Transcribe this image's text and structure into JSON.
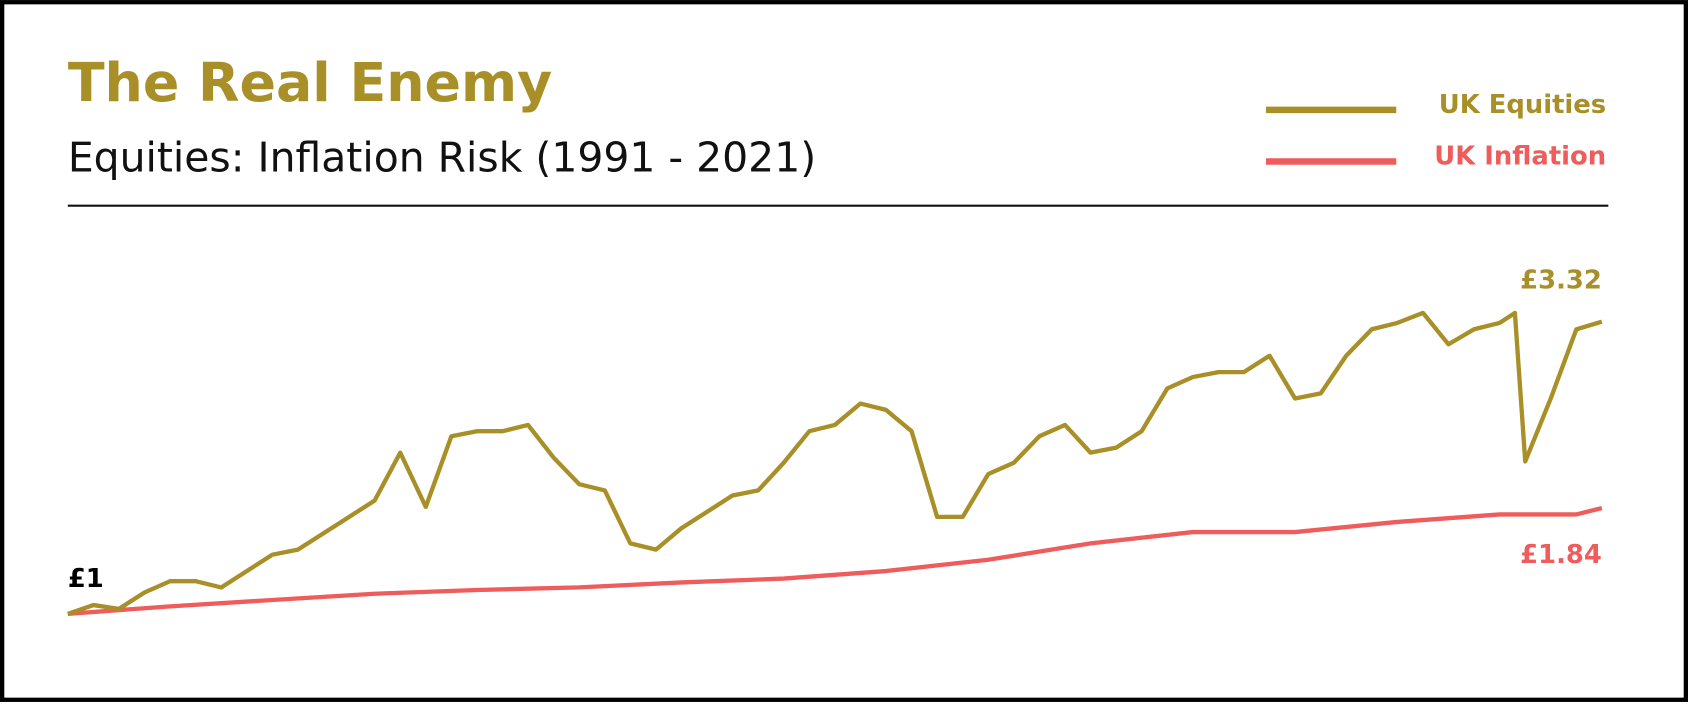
{
  "chart_data": {
    "type": "line",
    "title": "The Real Enemy",
    "subtitle": "Equities: Inflation Risk (1991 - 2021)",
    "legend": "top-right",
    "xlim": [
      1991,
      2021
    ],
    "ylim": [
      0.6,
      3.6
    ],
    "series": [
      {
        "name": "UK Equities",
        "color": "#a88f27",
        "x": [
          1991,
          1991.5,
          1992,
          1992.5,
          1993,
          1993.5,
          1994,
          1994.5,
          1995,
          1995.5,
          1996,
          1996.5,
          1997,
          1997.5,
          1998,
          1998.5,
          1999,
          1999.5,
          2000,
          2000.5,
          2001,
          2001.5,
          2002,
          2002.5,
          2003,
          2003.5,
          2004,
          2004.5,
          2005,
          2005.5,
          2006,
          2006.5,
          2007,
          2007.5,
          2008,
          2008.5,
          2009,
          2009.5,
          2010,
          2010.5,
          2011,
          2011.5,
          2012,
          2012.5,
          2013,
          2013.5,
          2014,
          2014.5,
          2015,
          2015.5,
          2016,
          2016.5,
          2017,
          2017.5,
          2018,
          2018.5,
          2019,
          2019.3,
          2019.5,
          2020,
          2020.5,
          2021
        ],
        "values": [
          1.0,
          1.07,
          1.04,
          1.17,
          1.26,
          1.26,
          1.21,
          1.34,
          1.47,
          1.51,
          1.64,
          1.77,
          1.9,
          2.28,
          1.85,
          2.41,
          2.45,
          2.45,
          2.5,
          2.24,
          2.03,
          1.98,
          1.56,
          1.51,
          1.68,
          1.81,
          1.94,
          1.98,
          2.2,
          2.45,
          2.5,
          2.67,
          2.62,
          2.45,
          1.77,
          1.77,
          2.11,
          2.2,
          2.41,
          2.5,
          2.28,
          2.32,
          2.45,
          2.79,
          2.88,
          2.92,
          2.92,
          3.05,
          2.71,
          2.75,
          3.05,
          3.26,
          3.31,
          3.39,
          3.14,
          3.26,
          3.31,
          3.39,
          2.21,
          2.71,
          3.26,
          3.32
        ]
      },
      {
        "name": "UK Inflation",
        "color": "#ee5c5c",
        "x": [
          1991,
          1993,
          1995,
          1997,
          1999,
          2001,
          2003,
          2005,
          2007,
          2009,
          2011,
          2013,
          2015,
          2017,
          2019,
          2020.5,
          2021
        ],
        "values": [
          1.0,
          1.06,
          1.11,
          1.16,
          1.19,
          1.21,
          1.25,
          1.28,
          1.34,
          1.43,
          1.56,
          1.65,
          1.65,
          1.73,
          1.79,
          1.79,
          1.84
        ]
      }
    ],
    "annotations": [
      {
        "text": "£1",
        "color": "#000000"
      },
      {
        "text": "£3.32",
        "color": "#a88f27"
      },
      {
        "text": "£1.84",
        "color": "#ee5c5c"
      }
    ]
  }
}
